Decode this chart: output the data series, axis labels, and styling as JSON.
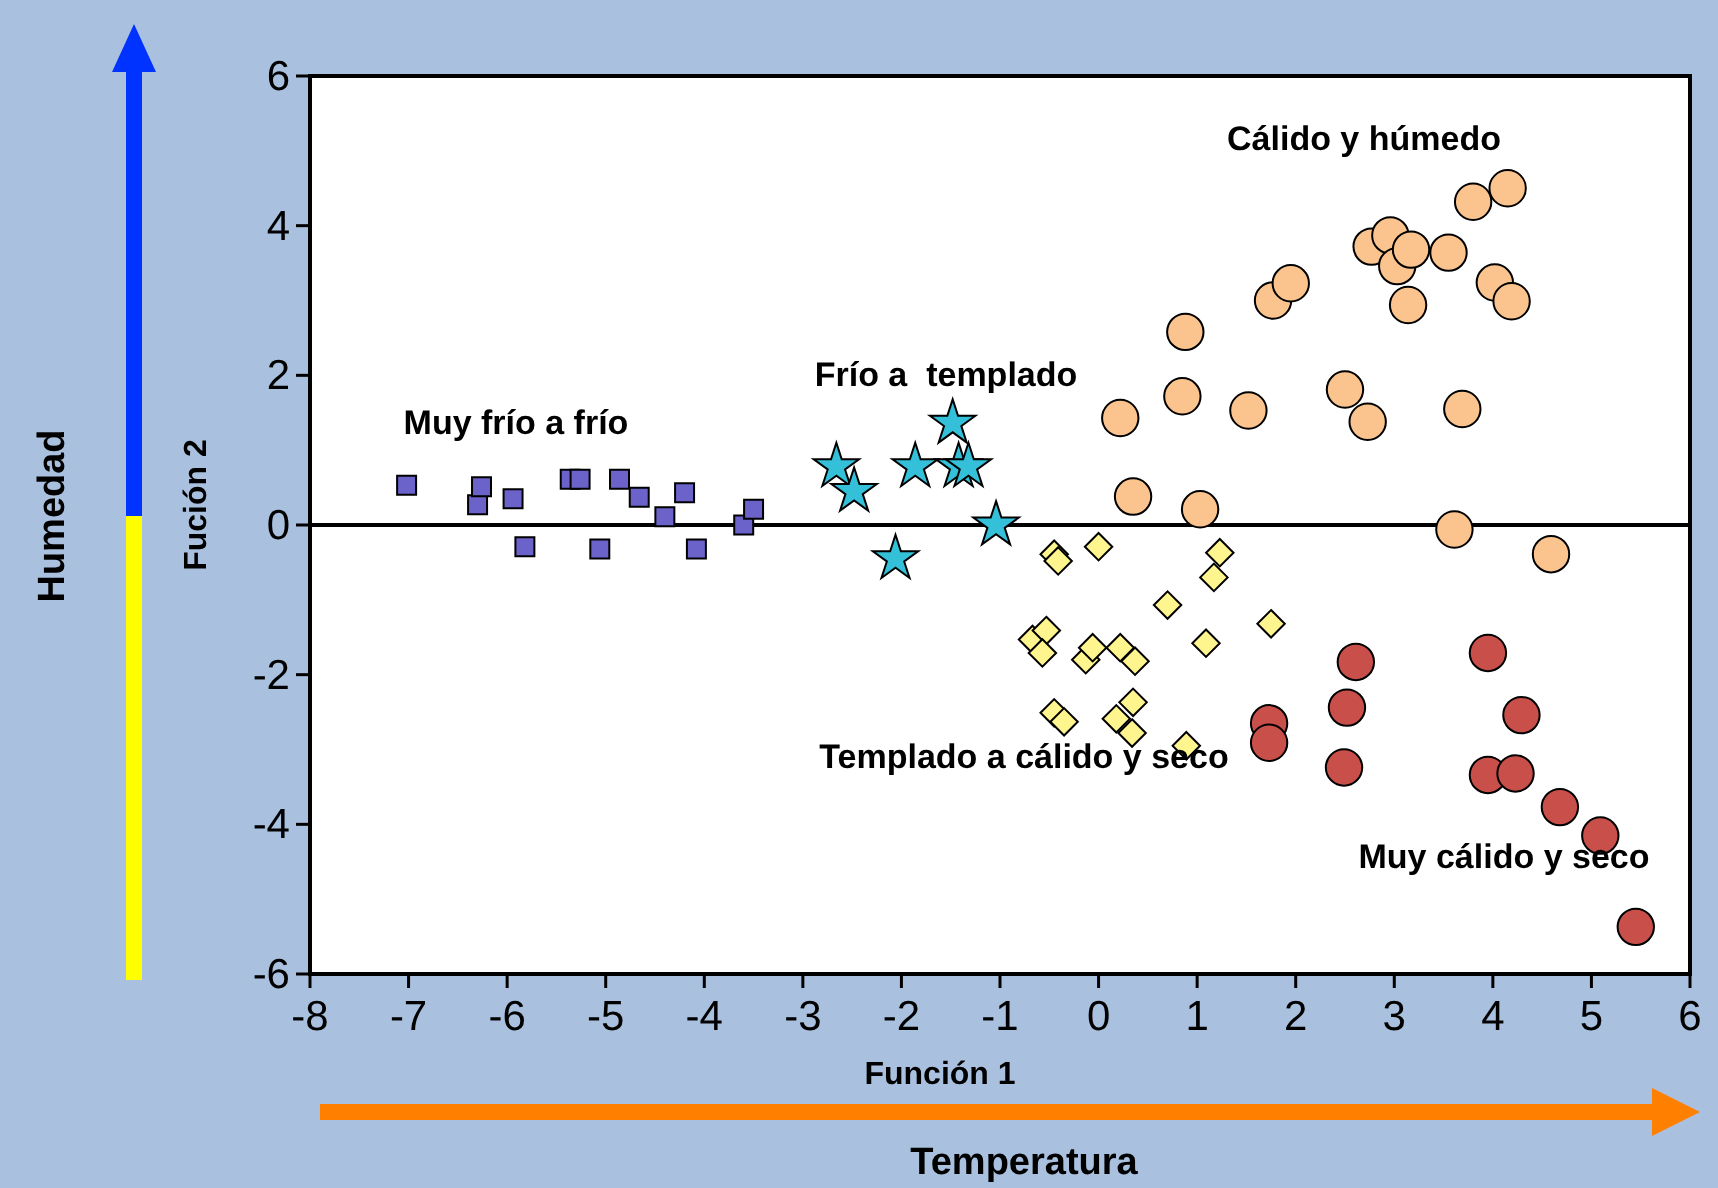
{
  "chart_data": {
    "type": "scatter",
    "xlabel": "Función 1",
    "ylabel": "Fución 2",
    "xlim": [
      -8,
      6
    ],
    "ylim": [
      -6,
      6
    ],
    "xticks": [
      -8,
      -7,
      -6,
      -5,
      -4,
      -3,
      -2,
      -1,
      0,
      1,
      2,
      3,
      4,
      5,
      6
    ],
    "yticks": [
      -6,
      -4,
      -2,
      0,
      2,
      4,
      6
    ],
    "grid": false,
    "ref_lines": [
      {
        "axis": "y",
        "value": 0,
        "color": "#000000"
      }
    ],
    "series": [
      {
        "marker": "square",
        "color": "#6b63c9",
        "x": [
          -7.02,
          -6.3,
          -6.26,
          -5.94,
          -5.82,
          -5.36,
          -5.26,
          -5.06,
          -4.86,
          -4.66,
          -4.4,
          -4.2,
          -4.08,
          -3.6,
          -3.5
        ],
        "values": [
          0.53,
          0.27,
          0.51,
          0.35,
          -0.29,
          0.61,
          0.61,
          -0.32,
          0.61,
          0.37,
          0.11,
          0.43,
          -0.32,
          0,
          0.21
        ]
      },
      {
        "marker": "star",
        "color": "#33c0d8",
        "x": [
          -2.66,
          -2.48,
          -2.06,
          -1.86,
          -1.48,
          -1.42,
          -1.32,
          -1.04
        ],
        "values": [
          0.78,
          0.45,
          -0.45,
          0.78,
          1.36,
          0.78,
          0.78,
          0
        ]
      },
      {
        "marker": "circle",
        "color": "#fbc48e",
        "x": [
          0.22,
          0.35,
          0.85,
          0.88,
          1.03,
          1.52,
          1.77,
          1.95,
          2.5,
          2.73,
          2.77,
          2.96,
          3.03,
          3.17,
          3.14,
          3.55,
          3.61,
          3.69,
          3.8,
          4.02,
          4.15,
          4.19,
          4.59
        ],
        "values": [
          1.43,
          0.38,
          1.72,
          2.58,
          0.21,
          1.53,
          3.0,
          3.23,
          1.81,
          1.38,
          3.72,
          3.87,
          3.46,
          3.68,
          2.94,
          3.64,
          -0.06,
          1.55,
          4.32,
          3.24,
          4.5,
          2.99,
          -0.39
        ]
      },
      {
        "marker": "diamond",
        "color": "#fff58f",
        "x": [
          -0.45,
          -0.41,
          0,
          1.23,
          1.17,
          0.7,
          1.75,
          -0.67,
          -0.53,
          -0.57,
          -0.13,
          -0.06,
          0.22,
          0.37,
          1.09,
          -0.45,
          -0.35,
          0.18,
          0.35,
          0.34,
          0.89
        ],
        "values": [
          -0.39,
          -0.48,
          -0.29,
          -0.37,
          -0.7,
          -1.07,
          -1.32,
          -1.53,
          -1.41,
          -1.71,
          -1.8,
          -1.64,
          -1.64,
          -1.82,
          -1.58,
          -2.51,
          -2.63,
          -2.59,
          -2.37,
          -2.78,
          -2.95
        ]
      },
      {
        "marker": "circle",
        "color": "#c9504a",
        "x": [
          2.61,
          2.52,
          1.73,
          1.73,
          2.49,
          3.95,
          4.29,
          3.95,
          4.23,
          4.68,
          5.09,
          5.45
        ],
        "values": [
          -1.83,
          -2.44,
          -2.65,
          -2.91,
          -3.24,
          -1.71,
          -2.54,
          -3.34,
          -3.32,
          -3.77,
          -4.15,
          -5.37
        ]
      }
    ],
    "annotations": [
      "Muy frío a frío",
      "Frío a  templado",
      "Cálido y húmedo",
      "Templado a cálido y seco",
      "Muy cálido y seco",
      "Humedad",
      "Temperatura"
    ]
  }
}
